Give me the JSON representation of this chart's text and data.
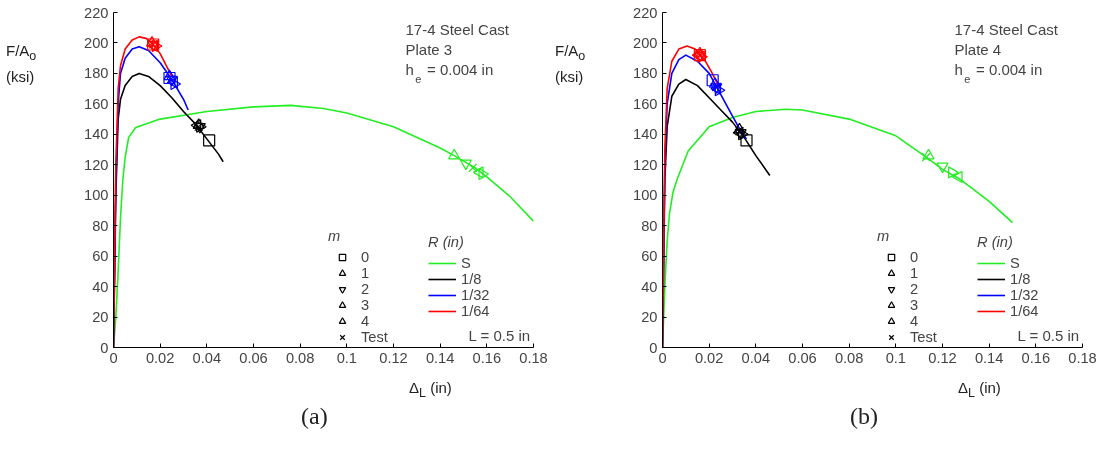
{
  "chart_data": [
    {
      "type": "line",
      "title": "(a)",
      "xlabel": "Δ$_{L}$ (in)",
      "ylabel": "F/A$_{o}$ (ksi)",
      "legend_title": [
        "m",
        "R (in)"
      ],
      "xlim": [
        0,
        0.18
      ],
      "ylim": [
        0,
        220
      ],
      "xticks": [
        0,
        0.02,
        0.04,
        0.06,
        0.08,
        0.1,
        0.12,
        0.14,
        0.16,
        0.18
      ],
      "yticks": [
        0,
        20,
        40,
        60,
        80,
        100,
        120,
        140,
        160,
        180,
        200,
        220
      ],
      "grid": false,
      "legend": "bottom right",
      "line_style": "solid",
      "annotations": [
        "17-4 Steel Cast",
        "Plate 3",
        "h$_{e}$ = 0.004 in",
        "L = 0.5 in"
      ],
      "series": [
        {
          "name": "S",
          "color": "#22ee22",
          "x": [
            0,
            0.001,
            0.002,
            0.003,
            0.004,
            0.005,
            0.0065,
            0.0095,
            0.02,
            0.04,
            0.06,
            0.076,
            0.09,
            0.1,
            0.12,
            0.14,
            0.146,
            0.155,
            0.16,
            0.17,
            0.18
          ],
          "values": [
            0,
            20,
            50,
            85,
            110,
            125,
            138,
            144.5,
            150,
            155,
            158,
            159,
            157,
            154,
            145,
            131,
            126,
            118,
            112,
            99,
            83
          ]
        },
        {
          "name": "1/8",
          "color": "#000000",
          "x": [
            0,
            0.001,
            0.002,
            0.003,
            0.005,
            0.008,
            0.011,
            0.015,
            0.02,
            0.025,
            0.03,
            0.035,
            0.04,
            0.045,
            0.047
          ],
          "values": [
            0,
            100,
            150,
            163,
            172,
            178,
            180,
            178,
            172,
            164,
            155,
            147,
            137,
            127,
            122
          ]
        },
        {
          "name": "1/32",
          "color": "#0000ff",
          "x": [
            0,
            0.001,
            0.002,
            0.003,
            0.005,
            0.008,
            0.011,
            0.015,
            0.02,
            0.025,
            0.03,
            0.032
          ],
          "values": [
            0,
            110,
            160,
            180,
            190,
            196,
            197.5,
            195,
            187,
            176,
            163,
            156
          ]
        },
        {
          "name": "1/64",
          "color": "#ff0000",
          "x": [
            0,
            0.001,
            0.002,
            0.003,
            0.005,
            0.008,
            0.011,
            0.014,
            0.017,
            0.02,
            0.023,
            0.025
          ],
          "values": [
            0,
            120,
            170,
            185,
            196,
            202,
            204,
            203,
            199,
            193,
            184,
            178
          ]
        },
        {
          "name": "0",
          "type": "scatter",
          "marker": "square",
          "colors": [
            "#22ee22",
            "#000000",
            "#0000ff",
            "#ff0000"
          ],
          "x": [
            null,
            0.041,
            0.024,
            0.017
          ],
          "values": [
            null,
            136,
            177,
            199
          ]
        },
        {
          "name": "1",
          "type": "scatter",
          "marker": "triangle",
          "colors": [
            "#22ee22",
            "#000000",
            "#0000ff",
            "#ff0000"
          ],
          "x": [
            0.146,
            0.0365,
            0.024,
            0.0165
          ],
          "values": [
            126,
            146,
            178,
            200
          ]
        },
        {
          "name": "2",
          "type": "scatter",
          "marker": "triangle-down",
          "colors": [
            "#22ee22",
            "#000000",
            "#0000ff",
            "#ff0000"
          ],
          "x": [
            0.151,
            0.037,
            0.025,
            0.017
          ],
          "values": [
            121,
            145,
            176,
            199
          ]
        },
        {
          "name": "3",
          "type": "scatter",
          "marker": "triangle-right",
          "colors": [
            "#22ee22",
            "#000000",
            "#0000ff",
            "#ff0000"
          ],
          "x": [
            0.158,
            0.037,
            0.026,
            0.018
          ],
          "values": [
            114,
            145,
            173,
            198
          ]
        },
        {
          "name": "4",
          "type": "scatter",
          "marker": "triangle-left",
          "colors": [
            "#22ee22",
            "#000000",
            "#0000ff",
            "#ff0000"
          ],
          "x": [
            0.157,
            0.036,
            0.026,
            0.0175
          ],
          "values": [
            115,
            146,
            174,
            198
          ]
        },
        {
          "name": "Test",
          "type": "scatter",
          "marker": "cross",
          "colors": [
            "#22ee22",
            "#000000",
            "#0000ff",
            "#ff0000"
          ],
          "x": [
            0.154,
            0.0365,
            0.0245,
            0.017
          ],
          "values": [
            118,
            145,
            176,
            199
          ]
        }
      ]
    },
    {
      "type": "line",
      "title": "(b)",
      "xlabel": "Δ$_{L}$ (in)",
      "ylabel": "F/A$_{o}$ (ksi)",
      "legend_title": [
        "m",
        "R (in)"
      ],
      "xlim": [
        0,
        0.18
      ],
      "ylim": [
        0,
        220
      ],
      "xticks": [
        0,
        0.02,
        0.04,
        0.06,
        0.08,
        0.1,
        0.12,
        0.14,
        0.16,
        0.18
      ],
      "yticks": [
        0,
        20,
        40,
        60,
        80,
        100,
        120,
        140,
        160,
        180,
        200,
        220
      ],
      "grid": false,
      "legend": "bottom right",
      "line_style": "solid",
      "annotations": [
        "17-4 Steel Cast",
        "Plate 4",
        "h$_{e}$ = 0.004 in",
        "L = 0.5 in"
      ],
      "series": [
        {
          "name": "S",
          "color": "#22ee22",
          "x": [
            0,
            0.001,
            0.002,
            0.003,
            0.0045,
            0.0064,
            0.011,
            0.02,
            0.03,
            0.04,
            0.053,
            0.06,
            0.08,
            0.1,
            0.113,
            0.12,
            0.127,
            0.14,
            0.15
          ],
          "values": [
            0,
            40,
            70,
            88,
            102,
            111,
            129,
            145,
            151,
            155,
            156.5,
            156,
            150,
            139,
            125,
            117,
            111,
            96,
            82
          ]
        },
        {
          "name": "1/8",
          "color": "#000000",
          "x": [
            0,
            0.001,
            0.002,
            0.004,
            0.007,
            0.01,
            0.015,
            0.02,
            0.025,
            0.03,
            0.035,
            0.04,
            0.046
          ],
          "values": [
            0,
            110,
            145,
            165,
            173,
            176,
            172,
            164,
            156,
            148,
            138,
            126,
            113
          ]
        },
        {
          "name": "1/32",
          "color": "#0000ff",
          "x": [
            0,
            0.001,
            0.002,
            0.004,
            0.007,
            0.01,
            0.015,
            0.02,
            0.025,
            0.03,
            0.034,
            0.036
          ],
          "values": [
            0,
            120,
            160,
            180,
            189,
            192,
            188,
            180,
            166,
            152,
            141,
            137
          ]
        },
        {
          "name": "1/64",
          "color": "#ff0000",
          "x": [
            0,
            0.001,
            0.002,
            0.004,
            0.007,
            0.0105,
            0.014,
            0.018,
            0.021,
            0.024
          ],
          "values": [
            0,
            130,
            170,
            188,
            196,
            198,
            196,
            189,
            181,
            172
          ]
        },
        {
          "name": "0",
          "type": "scatter",
          "marker": "square",
          "colors": [
            "#22ee22",
            "#000000",
            "#0000ff",
            "#ff0000"
          ],
          "x": [
            null,
            0.036,
            0.0215,
            0.016
          ],
          "values": [
            null,
            136,
            175.5,
            192
          ]
        },
        {
          "name": "1",
          "type": "scatter",
          "marker": "triangle",
          "colors": [
            "#22ee22",
            "#000000",
            "#0000ff",
            "#ff0000"
          ],
          "x": [
            0.114,
            0.033,
            0.0225,
            0.016
          ],
          "values": [
            126,
            143,
            173,
            193
          ]
        },
        {
          "name": "2",
          "type": "scatter",
          "marker": "triangle-down",
          "colors": [
            "#22ee22",
            "#000000",
            "#0000ff",
            "#ff0000"
          ],
          "x": [
            0.12,
            0.0335,
            0.023,
            0.016
          ],
          "values": [
            119,
            141,
            171,
            192
          ]
        },
        {
          "name": "3",
          "type": "scatter",
          "marker": "triangle-right",
          "colors": [
            "#22ee22",
            "#000000",
            "#0000ff",
            "#ff0000"
          ],
          "x": [
            0.124,
            0.034,
            0.024,
            0.0165
          ],
          "values": [
            115,
            140,
            169,
            191
          ]
        },
        {
          "name": "4",
          "type": "scatter",
          "marker": "triangle-left",
          "colors": [
            "#22ee22",
            "#000000",
            "#0000ff",
            "#ff0000"
          ],
          "x": [
            0.127,
            0.033,
            0.0235,
            0.0155
          ],
          "values": [
            112,
            141,
            170,
            192
          ]
        },
        {
          "name": "Test",
          "type": "scatter",
          "marker": "cross",
          "colors": [
            "#22ee22",
            "#000000",
            "#0000ff",
            "#ff0000"
          ],
          "x": [
            0.113,
            0.033,
            0.023,
            0.016
          ],
          "values": [
            125,
            142,
            171,
            192
          ]
        }
      ]
    }
  ]
}
